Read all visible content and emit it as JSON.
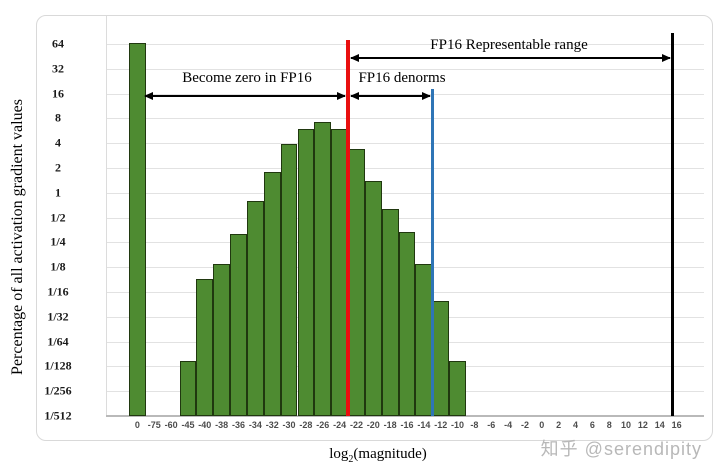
{
  "chart_data": {
    "type": "bar",
    "title": "",
    "xlabel": "log2(magnitude)",
    "ylabel": "Percentage of all activation gradient values",
    "y_scale": "log2",
    "ylim": [
      "1/512",
      "64"
    ],
    "grid": "horizontal",
    "y_ticks": [
      "64",
      "32",
      "16",
      "8",
      "4",
      "2",
      "1",
      "1/2",
      "1/4",
      "1/8",
      "1/16",
      "1/32",
      "1/64",
      "1/128",
      "1/256",
      "1/512"
    ],
    "categories": [
      "0",
      "-75",
      "-60",
      "-45",
      "-40",
      "-38",
      "-36",
      "-34",
      "-32",
      "-30",
      "-28",
      "-26",
      "-24",
      "-22",
      "-20",
      "-18",
      "-16",
      "-14",
      "-12",
      "-10",
      "-8",
      "-6",
      "-4",
      "-2",
      "0",
      "2",
      "4",
      "6",
      "8",
      "10",
      "12",
      "14",
      "16"
    ],
    "values": [
      66,
      null,
      null,
      0.009,
      0.09,
      0.135,
      0.32,
      0.8,
      1.8,
      3.9,
      6.0,
      7.3,
      5.9,
      3.4,
      1.4,
      0.63,
      0.33,
      0.135,
      0.048,
      0.009,
      null,
      null,
      null,
      null,
      null,
      null,
      null,
      null,
      null,
      null,
      null,
      null,
      null
    ],
    "annotations": [
      {
        "label": "Become zero in FP16",
        "arrow_from": "right edge of zero bar",
        "arrow_to": "red-line"
      },
      {
        "label": "FP16 denorms",
        "arrow_from": "red-line",
        "arrow_to": "blue-line"
      },
      {
        "label": "FP16 Representable range",
        "arrow_from": "red-line",
        "arrow_to": "black-line"
      }
    ],
    "reference_lines": [
      {
        "name": "red-line",
        "color": "#e90f0f",
        "at_boundary_after_category": "-24"
      },
      {
        "name": "blue-line",
        "color": "#2e75b6",
        "at_boundary_after_category": "-14"
      },
      {
        "name": "black-line",
        "color": "#000000",
        "at": "between 14 and 16"
      }
    ]
  },
  "xlabel_parts": {
    "base": "log",
    "sub": "2",
    "rest": "(magnitude)"
  },
  "watermark": "知乎 @serendipity",
  "colors": {
    "bar_fill": "#4e8b31",
    "bar_border": "#20380f",
    "red_line": "#e90f0f",
    "blue_line": "#2e75b6",
    "black_line": "#000000",
    "gridline": "#e2e2e2"
  }
}
